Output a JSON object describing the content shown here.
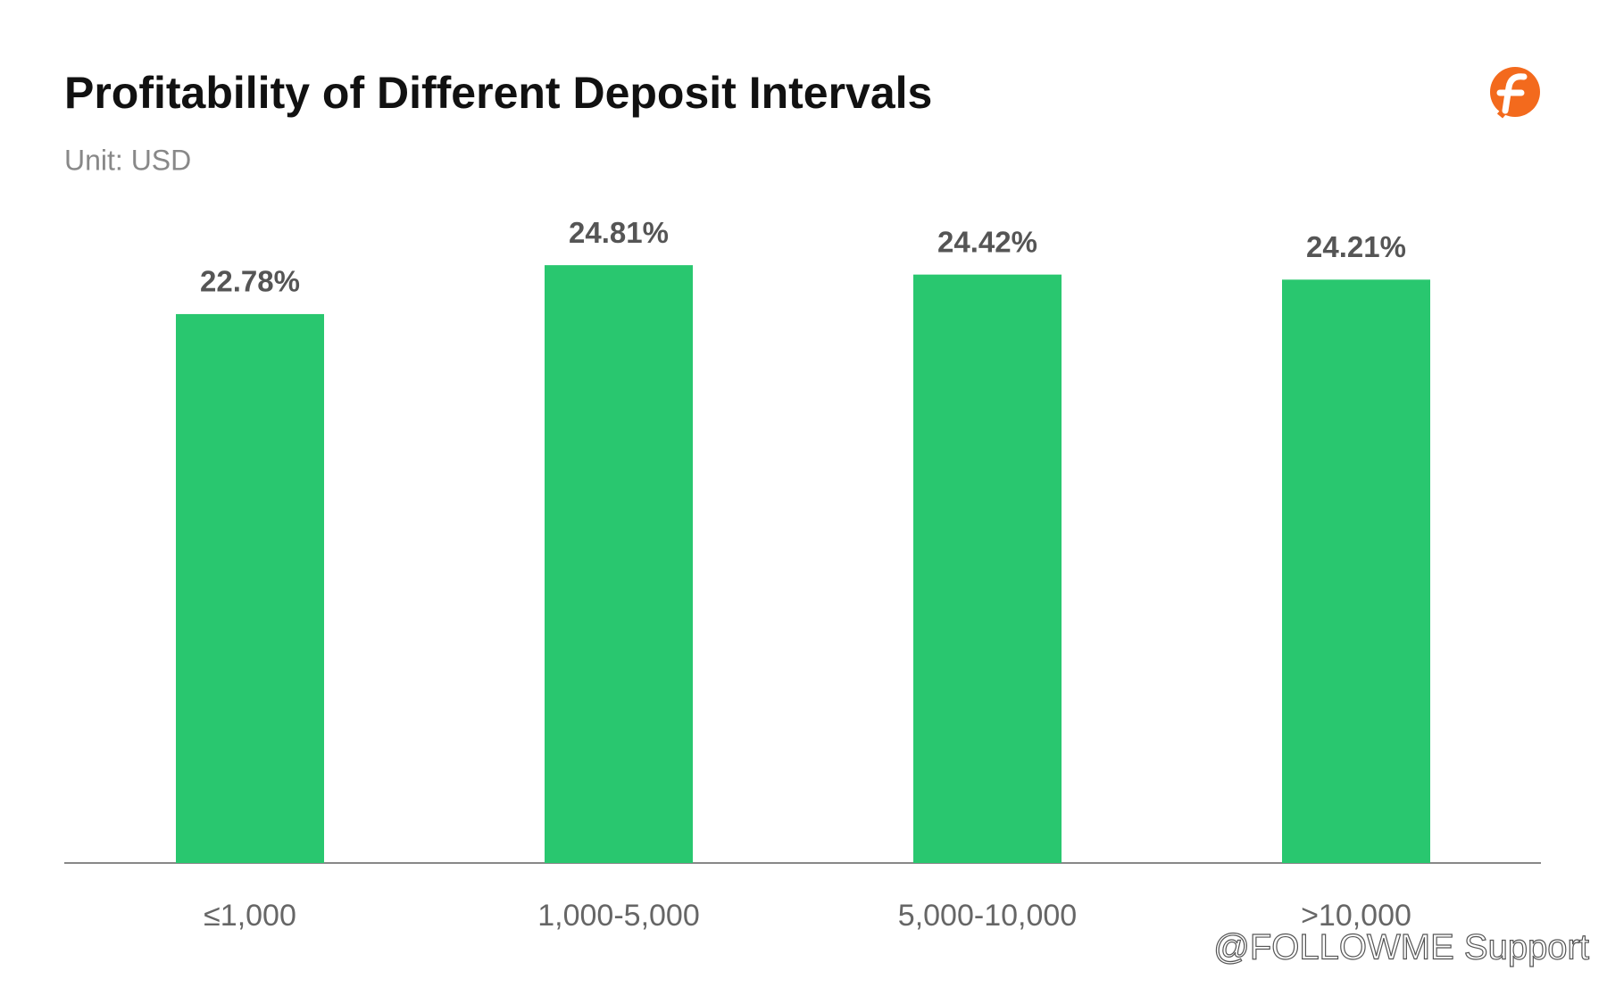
{
  "chart_data": {
    "type": "bar",
    "title": "Profitability of Different Deposit Intervals",
    "subtitle": "Unit: USD",
    "categories": [
      "≤1,000",
      "1,000-5,000",
      "5,000-10,000",
      ">10,000"
    ],
    "values": [
      22.78,
      24.81,
      24.42,
      24.21
    ],
    "value_labels": [
      "22.78%",
      "24.81%",
      "24.42%",
      "24.21%"
    ],
    "color": "#29c76f",
    "watermark": "@FOLLOWME Support"
  }
}
